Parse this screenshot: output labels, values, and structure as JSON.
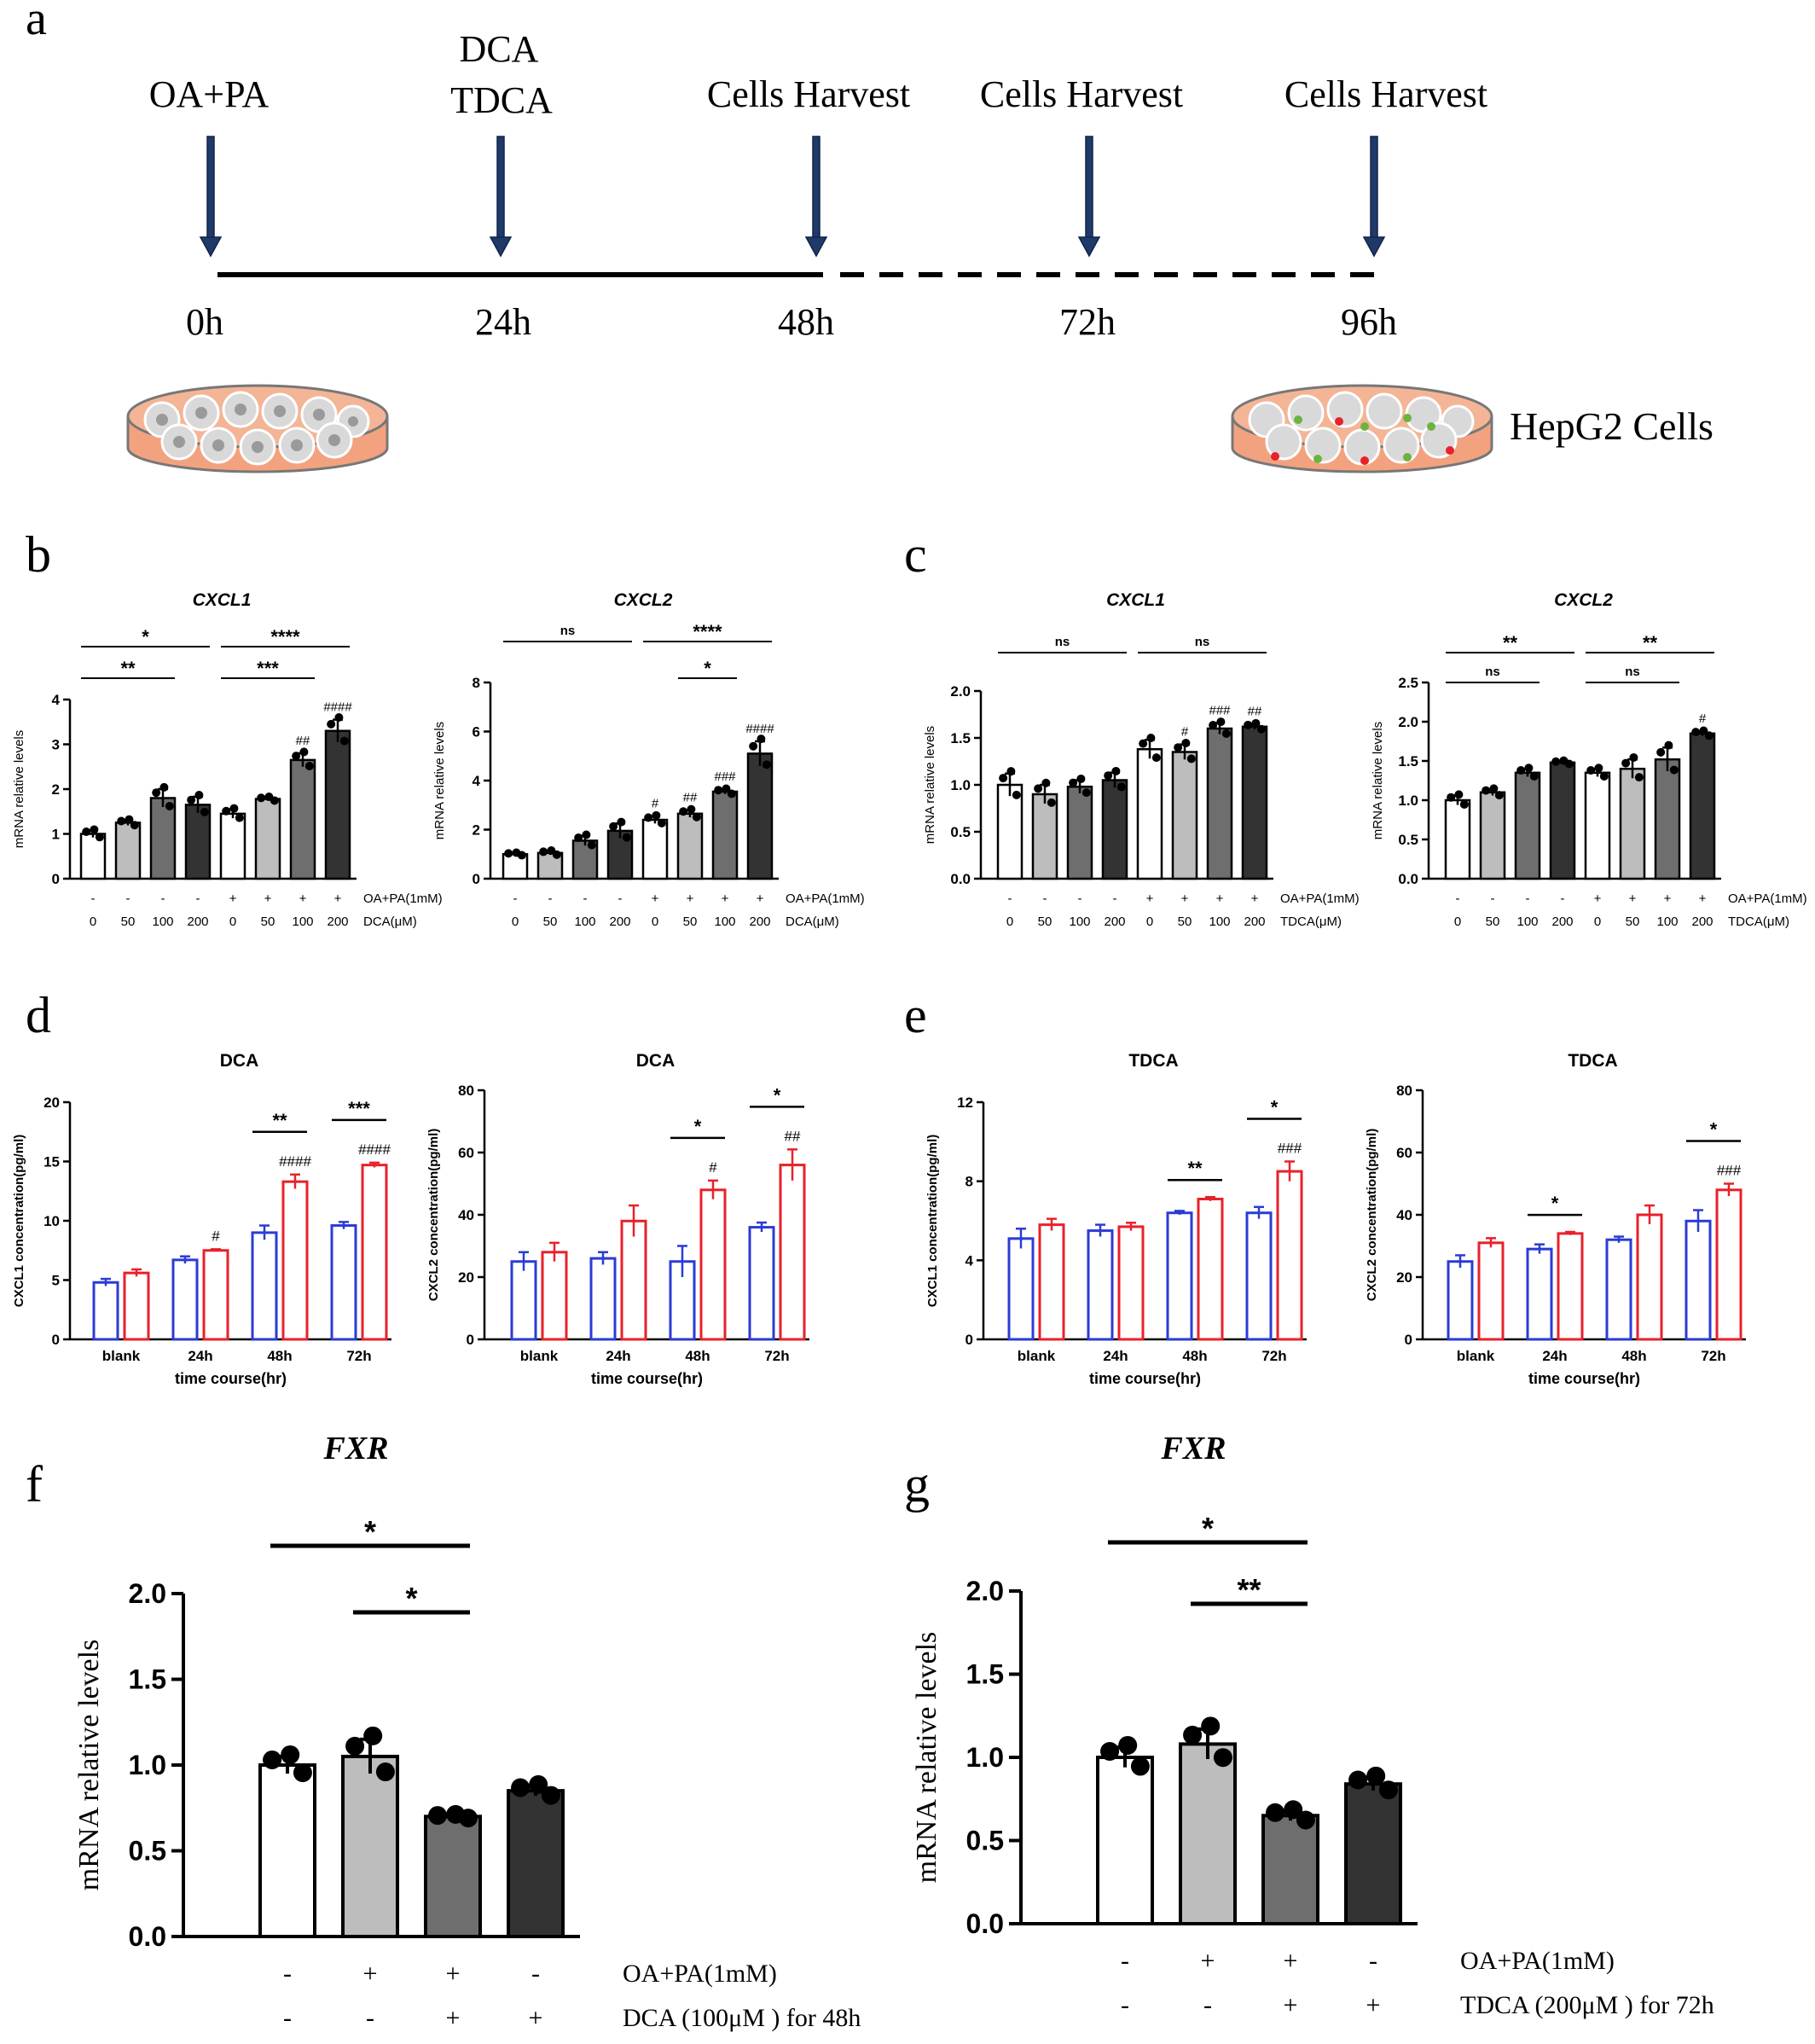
{
  "panel_letters": [
    "a",
    "b",
    "c",
    "d",
    "e",
    "f",
    "g"
  ],
  "timeline": {
    "events": [
      "OA+PA",
      "DCA",
      "TDCA",
      "Cells Harvest",
      "Cells Harvest",
      "Cells Harvest"
    ],
    "times": [
      "0h",
      "24h",
      "48h",
      "72h",
      "96h"
    ],
    "cell_label": "HepG2 Cells"
  },
  "colors": {
    "white_bar": "#ffffff",
    "light_gray": "#bdbdbd",
    "mid_gray": "#6e6e6e",
    "dark_gray": "#333333",
    "blue": "#2b3bd6",
    "red": "#e8212a",
    "dish_fill": "#f3a27f",
    "arrow": "#1f3a68"
  },
  "chart_data": [
    {
      "id": "b1",
      "type": "bar",
      "title": "CXCL1",
      "ylabel": "mRNA relative levels",
      "ylim": [
        0,
        4
      ],
      "yticks": [
        "0",
        "1",
        "2",
        "3",
        "4"
      ],
      "row1": [
        "-",
        "-",
        "-",
        "-",
        "+",
        "+",
        "+",
        "+"
      ],
      "row1_label": "OA+PA(1mM)",
      "row2": [
        "0",
        "50",
        "100",
        "200",
        "0",
        "50",
        "100",
        "200"
      ],
      "row2_label": "DCA(μM)",
      "values": [
        1.0,
        1.25,
        1.8,
        1.65,
        1.45,
        1.78,
        2.65,
        3.3
      ],
      "errors": [
        0.08,
        0.06,
        0.2,
        0.18,
        0.1,
        0.04,
        0.15,
        0.25
      ],
      "hash": [
        "",
        "",
        "",
        "",
        "",
        "",
        "##",
        "####"
      ],
      "sig": [
        {
          "from": 0,
          "to": 3,
          "label": "*"
        },
        {
          "from": 0,
          "to": 2,
          "label": "**"
        },
        {
          "from": 4,
          "to": 7,
          "label": "****"
        },
        {
          "from": 4,
          "to": 6,
          "label": "***"
        }
      ]
    },
    {
      "id": "b2",
      "type": "bar",
      "title": "CXCL2",
      "ylabel": "mRNA relative levels",
      "ylim": [
        0,
        8
      ],
      "yticks": [
        "0",
        "2",
        "4",
        "6",
        "8"
      ],
      "row1": [
        "-",
        "-",
        "-",
        "-",
        "+",
        "+",
        "+",
        "+"
      ],
      "row1_label": "OA+PA(1mM)",
      "row2": [
        "0",
        "50",
        "100",
        "200",
        "0",
        "50",
        "100",
        "200"
      ],
      "row2_label": "DCA(μM)",
      "values": [
        1.0,
        1.05,
        1.55,
        1.95,
        2.4,
        2.65,
        3.55,
        5.1
      ],
      "errors": [
        0.05,
        0.08,
        0.2,
        0.3,
        0.15,
        0.15,
        0.1,
        0.5
      ],
      "hash": [
        "",
        "",
        "",
        "",
        "#",
        "##",
        "###",
        "####"
      ],
      "sig": [
        {
          "from": 0,
          "to": 3,
          "label": "ns"
        },
        {
          "from": 4,
          "to": 7,
          "label": "****"
        },
        {
          "from": 5,
          "to": 6,
          "label": "*"
        }
      ]
    },
    {
      "id": "c1",
      "type": "bar",
      "title": "CXCL1",
      "ylabel": "mRNA relative levels",
      "ylim": [
        0,
        2
      ],
      "yticks": [
        "0.0",
        "0.5",
        "1.0",
        "1.5",
        "2.0"
      ],
      "row1": [
        "-",
        "-",
        "-",
        "-",
        "+",
        "+",
        "+",
        "+"
      ],
      "row1_label": "OA+PA(1mM)",
      "row2": [
        "0",
        "50",
        "100",
        "200",
        "0",
        "50",
        "100",
        "200"
      ],
      "row2_label": "TDCA(μM)",
      "values": [
        1.0,
        0.9,
        0.98,
        1.05,
        1.38,
        1.35,
        1.6,
        1.62
      ],
      "errors": [
        0.12,
        0.1,
        0.07,
        0.08,
        0.1,
        0.08,
        0.06,
        0.03
      ],
      "hash": [
        "",
        "",
        "",
        "",
        "",
        "#",
        "###",
        "##"
      ],
      "sig": [
        {
          "from": 0,
          "to": 3,
          "label": "ns"
        },
        {
          "from": 4,
          "to": 7,
          "label": "ns"
        }
      ]
    },
    {
      "id": "c2",
      "type": "bar",
      "title": "CXCL2",
      "ylabel": "mRNA relative levels",
      "ylim": [
        0,
        2.5
      ],
      "yticks": [
        "0.0",
        "0.5",
        "1.0",
        "1.5",
        "2.0",
        "2.5"
      ],
      "row1": [
        "-",
        "-",
        "-",
        "-",
        "+",
        "+",
        "+",
        "+"
      ],
      "row1_label": "OA+PA(1mM)",
      "row2": [
        "0",
        "50",
        "100",
        "200",
        "0",
        "50",
        "100",
        "200"
      ],
      "row2_label": "TDCA(μM)",
      "values": [
        1.0,
        1.1,
        1.35,
        1.48,
        1.35,
        1.4,
        1.52,
        1.85
      ],
      "errors": [
        0.06,
        0.04,
        0.05,
        0.02,
        0.05,
        0.12,
        0.15,
        0.03
      ],
      "hash": [
        "",
        "",
        "",
        "",
        "",
        "",
        "",
        "#"
      ],
      "sig": [
        {
          "from": 0,
          "to": 3,
          "label": "**"
        },
        {
          "from": 0,
          "to": 2,
          "label": "ns"
        },
        {
          "from": 4,
          "to": 7,
          "label": "**"
        },
        {
          "from": 4,
          "to": 6,
          "label": "ns"
        }
      ]
    },
    {
      "id": "d1",
      "type": "bar",
      "title": "DCA",
      "ylabel": "CXCL1 concentration(pg/ml)",
      "xlabel": "time course(hr)",
      "ylim": [
        0,
        20
      ],
      "yticks": [
        "0",
        "5",
        "10",
        "15",
        "20"
      ],
      "categories": [
        "blank",
        "24h",
        "48h",
        "72h"
      ],
      "series": [
        {
          "values": [
            4.8,
            6.7,
            9.0,
            9.6
          ],
          "errors": [
            0.3,
            0.3,
            0.6,
            0.3
          ]
        },
        {
          "values": [
            5.6,
            7.5,
            13.3,
            14.7
          ],
          "errors": [
            0.3,
            0.1,
            0.6,
            0.2
          ]
        }
      ],
      "hash": [
        "",
        "#",
        "####",
        "####"
      ],
      "sig": [
        {
          "group": 2,
          "label": "**"
        },
        {
          "group": 3,
          "label": "***"
        }
      ]
    },
    {
      "id": "d2",
      "type": "bar",
      "title": "DCA",
      "ylabel": "CXCL2 concentration(pg/ml)",
      "xlabel": "time course(hr)",
      "ylim": [
        0,
        80
      ],
      "yticks": [
        "0",
        "20",
        "40",
        "60",
        "80"
      ],
      "categories": [
        "blank",
        "24h",
        "48h",
        "72h"
      ],
      "series": [
        {
          "values": [
            25,
            26,
            25,
            36
          ],
          "errors": [
            3,
            2,
            5,
            1.5
          ]
        },
        {
          "values": [
            28,
            38,
            48,
            56
          ],
          "errors": [
            3,
            5,
            3,
            5
          ]
        }
      ],
      "hash": [
        "",
        "",
        "#",
        "##"
      ],
      "sig": [
        {
          "group": 2,
          "label": "*"
        },
        {
          "group": 3,
          "label": "*"
        }
      ]
    },
    {
      "id": "e1",
      "type": "bar",
      "title": "TDCA",
      "ylabel": "CXCL1 concentration(pg/ml)",
      "xlabel": "time course(hr)",
      "ylim": [
        0,
        12
      ],
      "yticks": [
        "0",
        "4",
        "8",
        "12"
      ],
      "categories": [
        "blank",
        "24h",
        "48h",
        "72h"
      ],
      "series": [
        {
          "values": [
            5.1,
            5.5,
            6.4,
            6.4
          ],
          "errors": [
            0.5,
            0.3,
            0.1,
            0.3
          ]
        },
        {
          "values": [
            5.8,
            5.7,
            7.1,
            8.5
          ],
          "errors": [
            0.3,
            0.2,
            0.1,
            0.5
          ]
        }
      ],
      "hash": [
        "",
        "",
        "",
        "###"
      ],
      "sig": [
        {
          "group": 2,
          "label": "**"
        },
        {
          "group": 3,
          "label": "*"
        }
      ]
    },
    {
      "id": "e2",
      "type": "bar",
      "title": "TDCA",
      "ylabel": "CXCL2 concentration(pg/ml)",
      "xlabel": "time course(hr)",
      "ylim": [
        0,
        80
      ],
      "yticks": [
        "0",
        "20",
        "40",
        "60",
        "80"
      ],
      "categories": [
        "blank",
        "24h",
        "48h",
        "72h"
      ],
      "series": [
        {
          "values": [
            25,
            29,
            32,
            38
          ],
          "errors": [
            2,
            1.5,
            1,
            3.5
          ]
        },
        {
          "values": [
            31,
            34,
            40,
            48
          ],
          "errors": [
            1.5,
            0.5,
            3,
            2
          ]
        }
      ],
      "hash": [
        "",
        "",
        "",
        "###"
      ],
      "sig": [
        {
          "group": 1,
          "label": "*"
        },
        {
          "group": 3,
          "label": "*"
        }
      ]
    },
    {
      "id": "f",
      "type": "bar",
      "title": "FXR",
      "ylabel": "mRNA relative levels",
      "ylim": [
        0,
        2
      ],
      "yticks": [
        "0.0",
        "0.5",
        "1.0",
        "1.5",
        "2.0"
      ],
      "row1": [
        "-",
        "+",
        "+",
        "-"
      ],
      "row1_label": "OA+PA(1mM)",
      "row2": [
        "-",
        "-",
        "+",
        "+"
      ],
      "row2_label": "DCA (100μM ) for 48h",
      "values": [
        1.0,
        1.05,
        0.7,
        0.85
      ],
      "errors": [
        0.05,
        0.1,
        0.01,
        0.03
      ],
      "sig": [
        {
          "from": 0,
          "to": 2,
          "label": "*"
        },
        {
          "from": 1,
          "to": 2,
          "label": "*"
        }
      ]
    },
    {
      "id": "g",
      "type": "bar",
      "title": "FXR",
      "ylabel": "mRNA relative levels",
      "ylim": [
        0,
        2
      ],
      "yticks": [
        "0.0",
        "0.5",
        "1.0",
        "1.5",
        "2.0"
      ],
      "row1": [
        "-",
        "+",
        "+",
        "-"
      ],
      "row1_label": "OA+PA(1mM)",
      "row2": [
        "-",
        "-",
        "+",
        "+"
      ],
      "row2_label": "TDCA (200μM ) for 72h",
      "values": [
        1.0,
        1.08,
        0.65,
        0.84
      ],
      "errors": [
        0.06,
        0.09,
        0.03,
        0.04
      ],
      "sig": [
        {
          "from": 0,
          "to": 2,
          "label": "*"
        },
        {
          "from": 1,
          "to": 2,
          "label": "**"
        }
      ]
    }
  ]
}
